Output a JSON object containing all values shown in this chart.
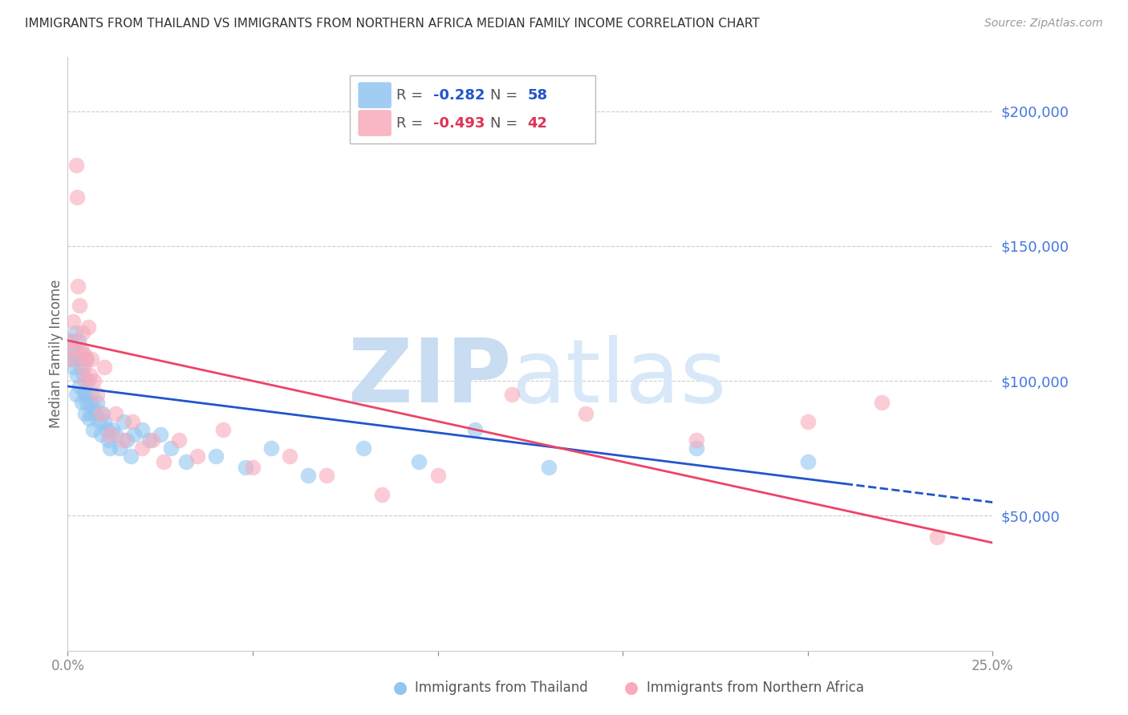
{
  "title": "IMMIGRANTS FROM THAILAND VS IMMIGRANTS FROM NORTHERN AFRICA MEDIAN FAMILY INCOME CORRELATION CHART",
  "source": "Source: ZipAtlas.com",
  "ylabel": "Median Family Income",
  "yticks": [
    0,
    50000,
    100000,
    150000,
    200000
  ],
  "ymin": 0,
  "ymax": 220000,
  "xmin": 0.0,
  "xmax": 0.25,
  "legend_r1": "-0.282",
  "legend_n1": "58",
  "legend_r2": "-0.493",
  "legend_n2": "42",
  "legend_label1": "Immigrants from Thailand",
  "legend_label2": "Immigrants from Northern Africa",
  "color_thailand": "#92C5F0",
  "color_n_africa": "#F9AABB",
  "color_r_blue": "#2255CC",
  "color_n_blue": "#2255CC",
  "color_r_pink": "#DD3355",
  "color_n_pink": "#DD3355",
  "color_line_blue": "#2255CC",
  "color_line_pink": "#EE4466",
  "color_title": "#333333",
  "color_ytick": "#4477DD",
  "background": "#FFFFFF",
  "thailand_x": [
    0.0008,
    0.001,
    0.0012,
    0.0015,
    0.0018,
    0.002,
    0.0022,
    0.0025,
    0.0028,
    0.003,
    0.0032,
    0.0035,
    0.0038,
    0.004,
    0.0042,
    0.0044,
    0.0046,
    0.0048,
    0.005,
    0.0052,
    0.0055,
    0.0058,
    0.006,
    0.0063,
    0.0065,
    0.0068,
    0.007,
    0.0075,
    0.008,
    0.0085,
    0.009,
    0.0095,
    0.01,
    0.0105,
    0.011,
    0.0115,
    0.012,
    0.013,
    0.014,
    0.015,
    0.016,
    0.017,
    0.018,
    0.02,
    0.022,
    0.025,
    0.028,
    0.032,
    0.04,
    0.048,
    0.055,
    0.065,
    0.08,
    0.095,
    0.11,
    0.13,
    0.17,
    0.2
  ],
  "thailand_y": [
    115000,
    108000,
    112000,
    105000,
    110000,
    118000,
    95000,
    102000,
    108000,
    115000,
    98000,
    105000,
    92000,
    110000,
    102000,
    96000,
    88000,
    95000,
    108000,
    92000,
    100000,
    86000,
    92000,
    88000,
    95000,
    82000,
    90000,
    88000,
    92000,
    85000,
    80000,
    88000,
    85000,
    82000,
    78000,
    75000,
    82000,
    80000,
    75000,
    85000,
    78000,
    72000,
    80000,
    82000,
    78000,
    80000,
    75000,
    70000,
    72000,
    68000,
    75000,
    65000,
    75000,
    70000,
    82000,
    68000,
    75000,
    70000
  ],
  "n_africa_x": [
    0.0008,
    0.001,
    0.0015,
    0.0018,
    0.0022,
    0.0025,
    0.0028,
    0.0032,
    0.0035,
    0.004,
    0.0042,
    0.0045,
    0.0048,
    0.0052,
    0.0055,
    0.006,
    0.0065,
    0.007,
    0.008,
    0.009,
    0.01,
    0.0115,
    0.013,
    0.015,
    0.0175,
    0.02,
    0.023,
    0.026,
    0.03,
    0.035,
    0.042,
    0.05,
    0.06,
    0.07,
    0.085,
    0.1,
    0.12,
    0.14,
    0.17,
    0.2,
    0.22,
    0.235
  ],
  "n_africa_y": [
    115000,
    108000,
    122000,
    112000,
    180000,
    168000,
    135000,
    128000,
    112000,
    118000,
    105000,
    110000,
    100000,
    108000,
    120000,
    102000,
    108000,
    100000,
    95000,
    88000,
    105000,
    80000,
    88000,
    78000,
    85000,
    75000,
    78000,
    70000,
    78000,
    72000,
    82000,
    68000,
    72000,
    65000,
    58000,
    65000,
    95000,
    88000,
    78000,
    85000,
    92000,
    42000
  ]
}
